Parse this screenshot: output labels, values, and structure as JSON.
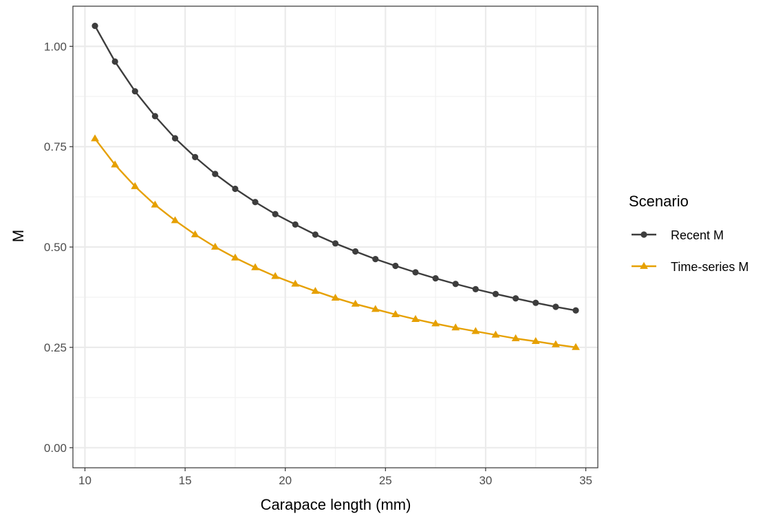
{
  "chart_data": {
    "type": "line",
    "title": "",
    "xlabel": "Carapace length (mm)",
    "ylabel": "M",
    "xlim": [
      9.4,
      35.6
    ],
    "ylim": [
      -0.05,
      1.1
    ],
    "x_ticks": [
      10,
      15,
      20,
      25,
      30,
      35
    ],
    "x_tick_labels": [
      "10",
      "15",
      "20",
      "25",
      "30",
      "35"
    ],
    "y_ticks": [
      0.0,
      0.25,
      0.5,
      0.75,
      1.0
    ],
    "y_tick_labels": [
      "0.00",
      "0.25",
      "0.50",
      "0.75",
      "1.00"
    ],
    "grid": true,
    "legend_position": "right",
    "legend_title": "Scenario",
    "x": [
      10.5,
      11.5,
      12.5,
      13.5,
      14.5,
      15.5,
      16.5,
      17.5,
      18.5,
      19.5,
      20.5,
      21.5,
      22.5,
      23.5,
      24.5,
      25.5,
      26.5,
      27.5,
      28.5,
      29.5,
      30.5,
      31.5,
      32.5,
      33.5,
      34.5
    ],
    "series": [
      {
        "name": "Recent M",
        "color": "#3d3d3d",
        "marker": "circle",
        "values": [
          1.051,
          0.962,
          0.888,
          0.826,
          0.771,
          0.724,
          0.682,
          0.645,
          0.612,
          0.582,
          0.556,
          0.531,
          0.509,
          0.489,
          0.47,
          0.453,
          0.437,
          0.422,
          0.408,
          0.395,
          0.383,
          0.372,
          0.361,
          0.351,
          0.342
        ]
      },
      {
        "name": "Time-series M",
        "color": "#e6a000",
        "marker": "triangle",
        "values": [
          0.77,
          0.705,
          0.651,
          0.605,
          0.566,
          0.531,
          0.5,
          0.473,
          0.449,
          0.427,
          0.408,
          0.39,
          0.373,
          0.358,
          0.345,
          0.332,
          0.32,
          0.309,
          0.299,
          0.29,
          0.281,
          0.272,
          0.265,
          0.257,
          0.25
        ]
      }
    ]
  }
}
